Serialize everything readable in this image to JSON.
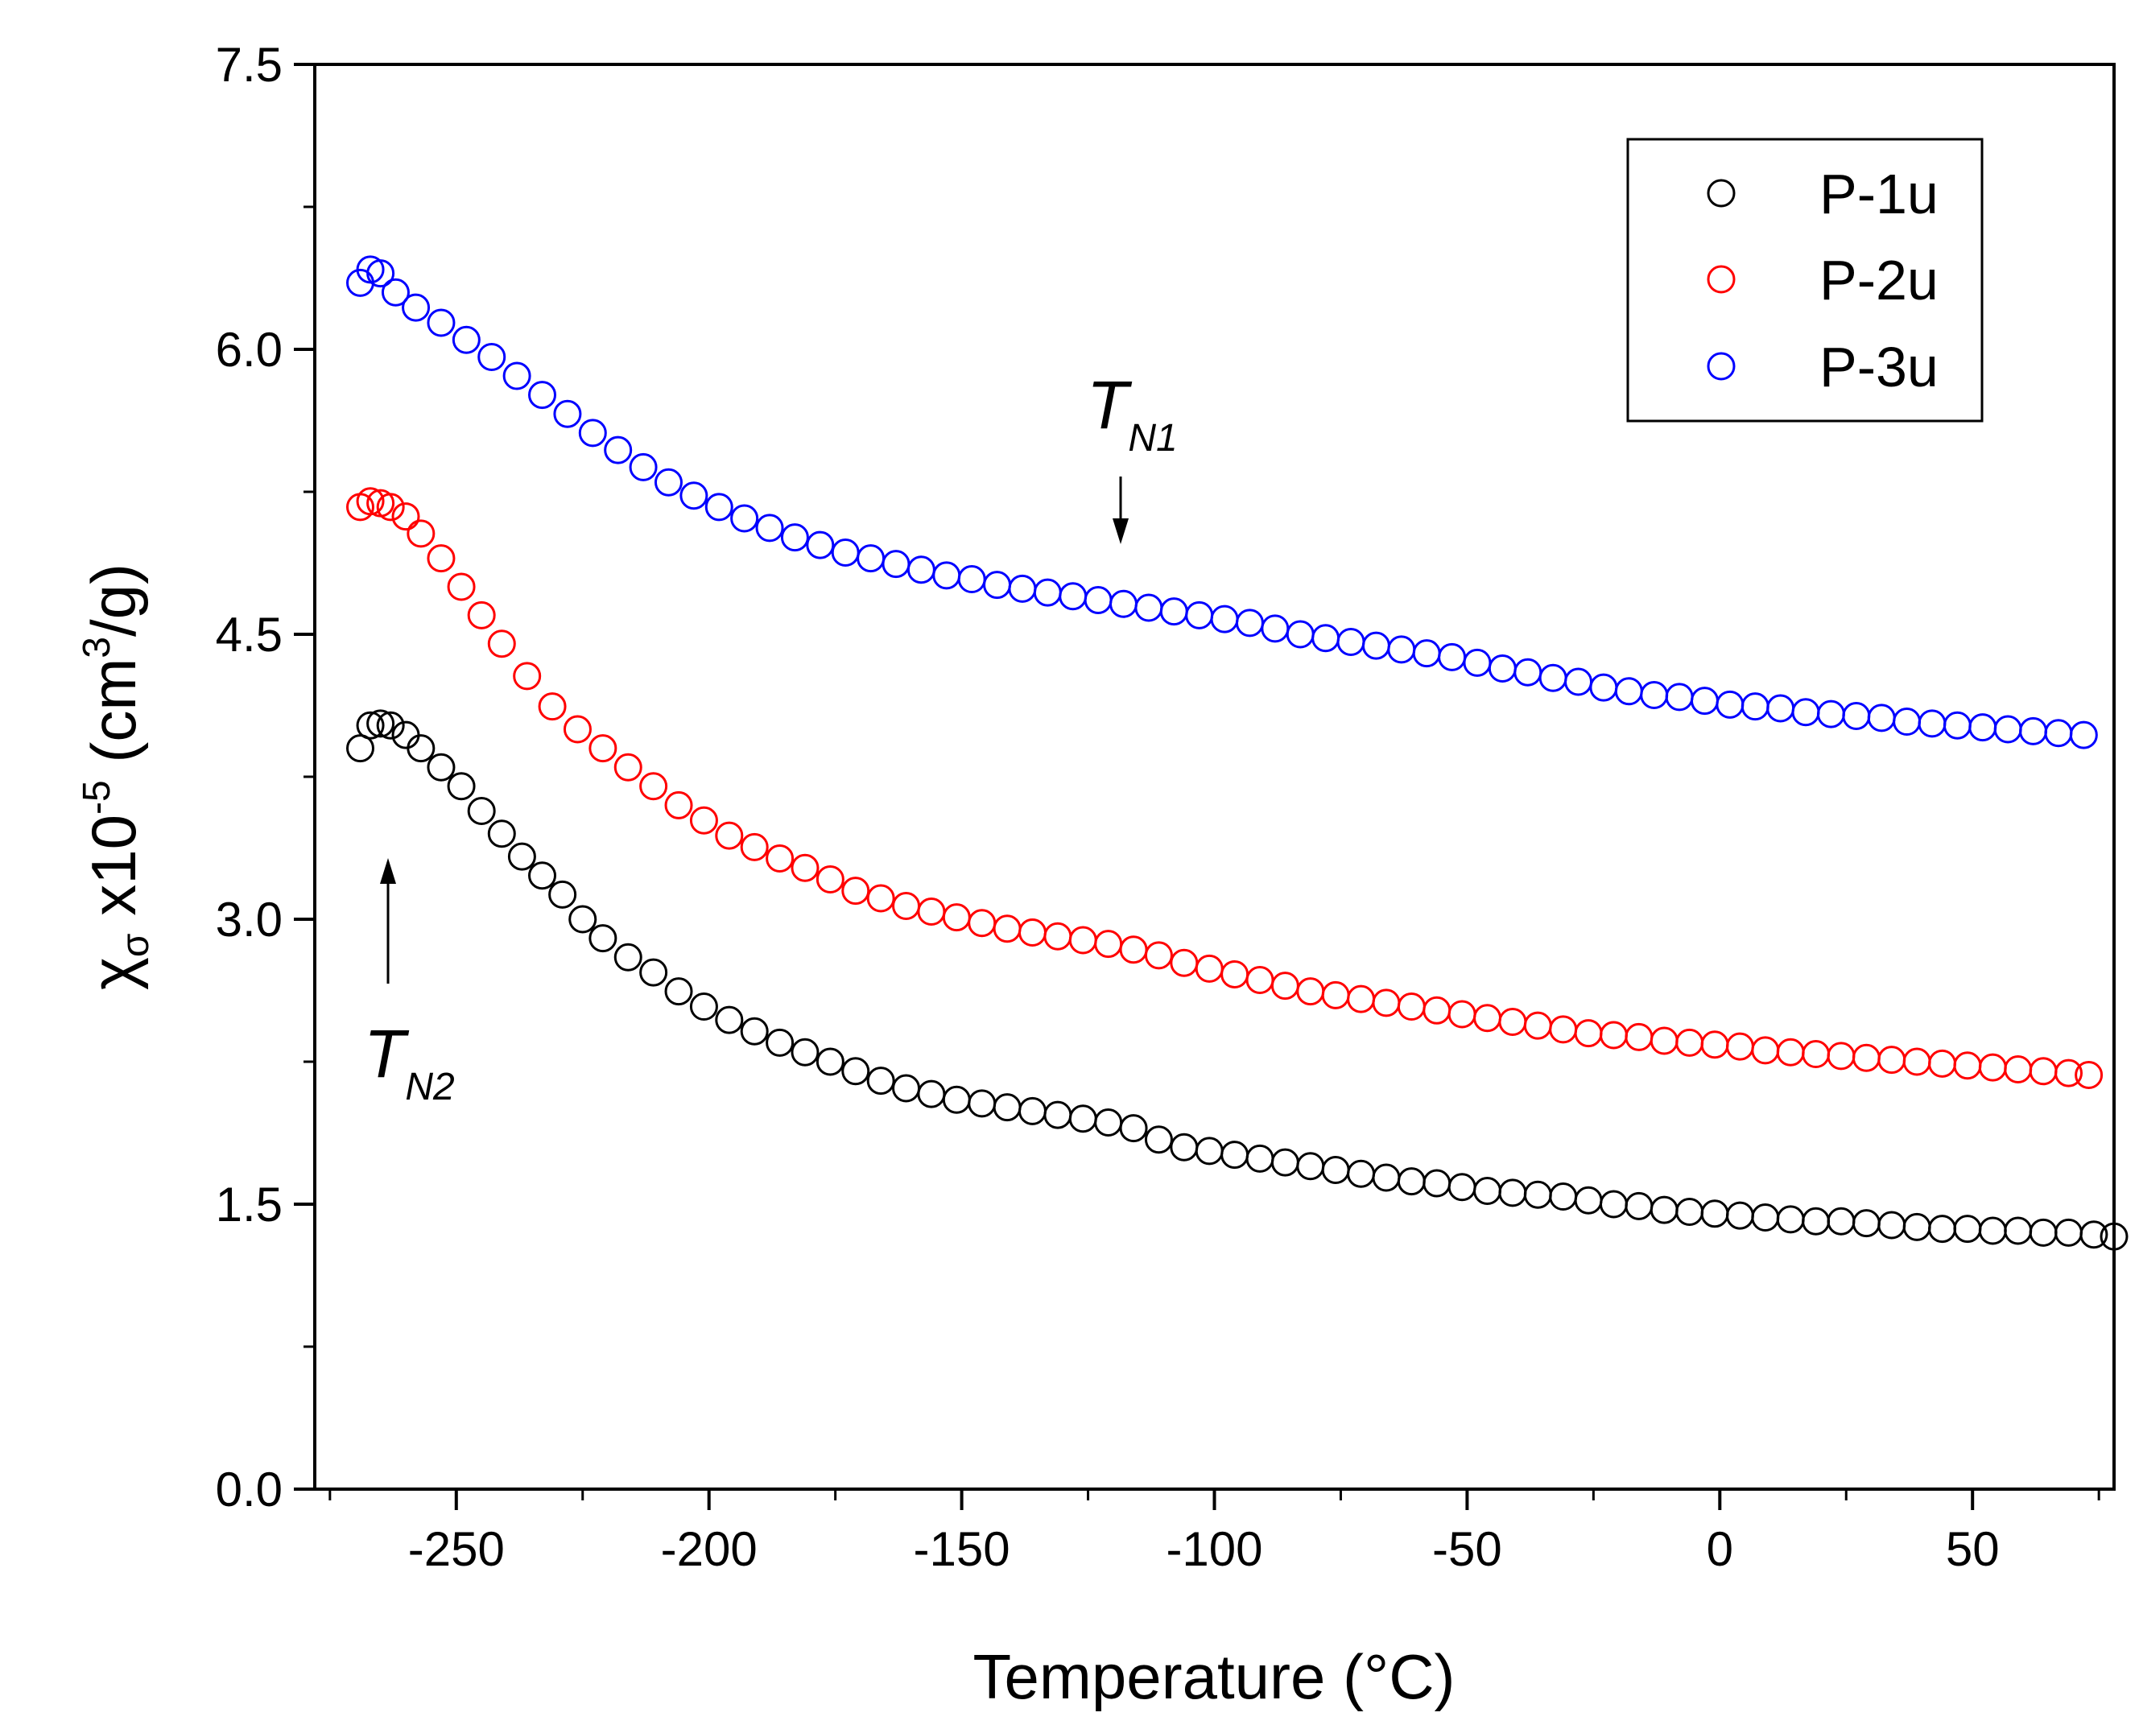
{
  "chart_data": {
    "type": "scatter",
    "title": "",
    "xlabel": "Temperature (°C)",
    "ylabel_main": "χ",
    "ylabel_sub": "σ",
    "ylabel_mid": " x10",
    "ylabel_exp": "-5",
    "ylabel_unit_pre": " (cm",
    "ylabel_unit_exp": "3",
    "ylabel_unit_post": "/g)",
    "xlim": [
      -278,
      78
    ],
    "ylim": [
      0,
      7.5
    ],
    "xticks": [
      -250,
      -200,
      -150,
      -100,
      -50,
      0,
      50
    ],
    "xtick_labels": [
      "-250",
      "-200",
      "-150",
      "-100",
      "-50",
      "0",
      "50"
    ],
    "yticks": [
      0.0,
      1.5,
      3.0,
      4.5,
      6.0,
      7.5
    ],
    "ytick_labels": [
      "0.0",
      "1.5",
      "3.0",
      "4.5",
      "6.0",
      "7.5"
    ],
    "legend_position": "top-right",
    "series": [
      {
        "name": "P-1u",
        "color": "#000000",
        "x": [
          -269,
          -267,
          -265,
          -263,
          -260,
          -257,
          -253,
          -249,
          -245,
          -241,
          -237,
          -233,
          -229,
          -225,
          -221,
          -216,
          -211,
          -206,
          -201,
          -196,
          -191,
          -186,
          -181,
          -176,
          -171,
          -166,
          -161,
          -156,
          -151,
          -146,
          -141,
          -136,
          -131,
          -126,
          -121,
          -116,
          -111,
          -106,
          -101,
          -96,
          -91,
          -86,
          -81,
          -76,
          -71,
          -66,
          -61,
          -56,
          -51,
          -46,
          -41,
          -36,
          -31,
          -26,
          -21,
          -16,
          -11,
          -6,
          -1,
          4,
          9,
          14,
          19,
          24,
          29,
          34,
          39,
          44,
          49,
          54,
          59,
          64,
          69,
          74,
          78
        ],
        "y": [
          3.9,
          4.02,
          4.03,
          4.02,
          3.97,
          3.9,
          3.8,
          3.7,
          3.57,
          3.45,
          3.33,
          3.23,
          3.13,
          3.0,
          2.9,
          2.8,
          2.72,
          2.62,
          2.54,
          2.47,
          2.41,
          2.35,
          2.3,
          2.25,
          2.2,
          2.15,
          2.11,
          2.08,
          2.05,
          2.03,
          2.01,
          1.99,
          1.97,
          1.95,
          1.93,
          1.9,
          1.84,
          1.8,
          1.78,
          1.76,
          1.74,
          1.72,
          1.7,
          1.68,
          1.66,
          1.64,
          1.62,
          1.61,
          1.59,
          1.57,
          1.56,
          1.55,
          1.54,
          1.52,
          1.5,
          1.49,
          1.47,
          1.46,
          1.45,
          1.44,
          1.43,
          1.42,
          1.41,
          1.41,
          1.4,
          1.39,
          1.38,
          1.37,
          1.37,
          1.36,
          1.36,
          1.35,
          1.35,
          1.34,
          1.33
        ]
      },
      {
        "name": "P-2u",
        "color": "#ff0000",
        "x": [
          -269,
          -267,
          -265,
          -263,
          -260,
          -257,
          -253,
          -249,
          -245,
          -241,
          -236,
          -231,
          -226,
          -221,
          -216,
          -211,
          -206,
          -201,
          -196,
          -191,
          -186,
          -181,
          -176,
          -171,
          -166,
          -161,
          -156,
          -151,
          -146,
          -141,
          -136,
          -131,
          -126,
          -121,
          -116,
          -111,
          -106,
          -101,
          -96,
          -91,
          -86,
          -81,
          -76,
          -71,
          -66,
          -61,
          -56,
          -51,
          -46,
          -41,
          -36,
          -31,
          -26,
          -21,
          -16,
          -11,
          -6,
          -1,
          4,
          9,
          14,
          19,
          24,
          29,
          34,
          39,
          44,
          49,
          54,
          59,
          64,
          69,
          73
        ],
        "y": [
          5.17,
          5.2,
          5.19,
          5.17,
          5.12,
          5.03,
          4.9,
          4.75,
          4.6,
          4.45,
          4.28,
          4.12,
          4.0,
          3.9,
          3.8,
          3.7,
          3.6,
          3.52,
          3.44,
          3.38,
          3.32,
          3.27,
          3.21,
          3.15,
          3.11,
          3.07,
          3.04,
          3.01,
          2.98,
          2.95,
          2.93,
          2.91,
          2.89,
          2.87,
          2.84,
          2.81,
          2.77,
          2.74,
          2.71,
          2.68,
          2.65,
          2.62,
          2.6,
          2.58,
          2.56,
          2.54,
          2.52,
          2.5,
          2.48,
          2.46,
          2.44,
          2.42,
          2.4,
          2.39,
          2.38,
          2.36,
          2.35,
          2.34,
          2.33,
          2.31,
          2.3,
          2.29,
          2.28,
          2.27,
          2.26,
          2.25,
          2.24,
          2.23,
          2.22,
          2.21,
          2.2,
          2.19,
          2.18
        ]
      },
      {
        "name": "P-3u",
        "color": "#0000ff",
        "x": [
          -269,
          -267,
          -265,
          -262,
          -258,
          -253,
          -248,
          -243,
          -238,
          -233,
          -228,
          -223,
          -218,
          -213,
          -208,
          -203,
          -198,
          -193,
          -188,
          -183,
          -178,
          -173,
          -168,
          -163,
          -158,
          -153,
          -148,
          -143,
          -138,
          -133,
          -128,
          -123,
          -118,
          -113,
          -108,
          -103,
          -98,
          -93,
          -88,
          -83,
          -78,
          -73,
          -68,
          -63,
          -58,
          -53,
          -48,
          -43,
          -38,
          -33,
          -28,
          -23,
          -18,
          -13,
          -8,
          -3,
          2,
          7,
          12,
          17,
          22,
          27,
          32,
          37,
          42,
          47,
          52,
          57,
          62,
          67,
          72
        ],
        "y": [
          6.35,
          6.42,
          6.4,
          6.3,
          6.22,
          6.14,
          6.05,
          5.96,
          5.86,
          5.76,
          5.66,
          5.56,
          5.47,
          5.38,
          5.3,
          5.23,
          5.17,
          5.11,
          5.06,
          5.01,
          4.97,
          4.93,
          4.9,
          4.87,
          4.84,
          4.81,
          4.79,
          4.76,
          4.74,
          4.72,
          4.7,
          4.68,
          4.66,
          4.64,
          4.62,
          4.6,
          4.58,
          4.56,
          4.53,
          4.5,
          4.48,
          4.46,
          4.44,
          4.42,
          4.4,
          4.38,
          4.35,
          4.32,
          4.3,
          4.27,
          4.25,
          4.22,
          4.2,
          4.18,
          4.17,
          4.15,
          4.13,
          4.12,
          4.11,
          4.09,
          4.08,
          4.07,
          4.06,
          4.04,
          4.03,
          4.02,
          4.01,
          4.0,
          3.99,
          3.98,
          3.97
        ]
      }
    ],
    "annotations": [
      {
        "main": "T",
        "sub": "N1",
        "x": -117,
        "y_head": 5.0,
        "y_tail": 5.3,
        "direction": "down"
      },
      {
        "main": "T",
        "sub": "N2",
        "x": -263,
        "y_head": 3.3,
        "y_tail": 2.7,
        "direction": "up"
      }
    ]
  }
}
